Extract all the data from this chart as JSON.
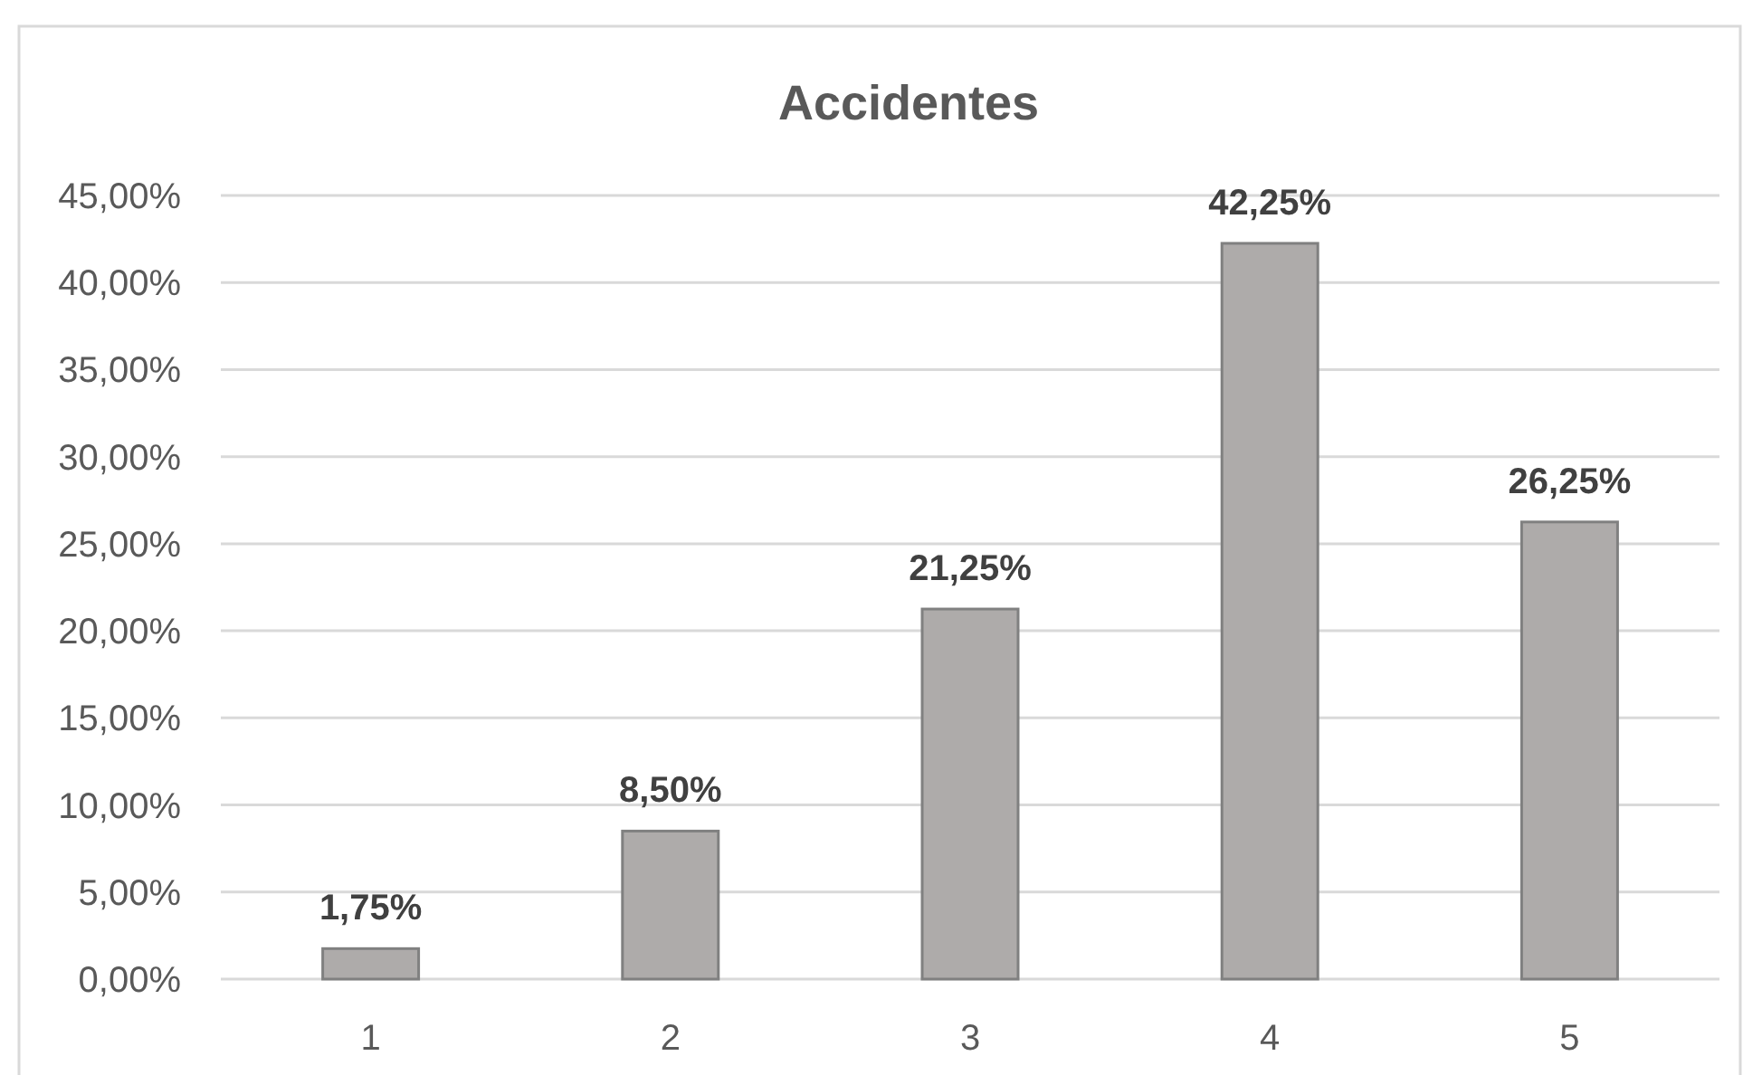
{
  "chart_data": {
    "type": "bar",
    "title": "Accidentes",
    "categories": [
      "1",
      "2",
      "3",
      "4",
      "5"
    ],
    "values": [
      1.75,
      8.5,
      21.25,
      42.25,
      26.25
    ],
    "color": "#aeabaa",
    "value_labels": [
      "1,75%",
      "8,50%",
      "21,25%",
      "42,25%",
      "26,25%"
    ],
    "ylim": [
      0,
      45
    ],
    "yticks": [
      {
        "value": 0,
        "label": "0,00%"
      },
      {
        "value": 5,
        "label": "5,00%"
      },
      {
        "value": 10,
        "label": "10,00%"
      },
      {
        "value": 15,
        "label": "15,00%"
      },
      {
        "value": 20,
        "label": "20,00%"
      },
      {
        "value": 25,
        "label": "25,00%"
      },
      {
        "value": 30,
        "label": "30,00%"
      },
      {
        "value": 35,
        "label": "35,00%"
      },
      {
        "value": 40,
        "label": "40,00%"
      },
      {
        "value": 45,
        "label": "45,00%"
      }
    ],
    "grid": "y"
  }
}
